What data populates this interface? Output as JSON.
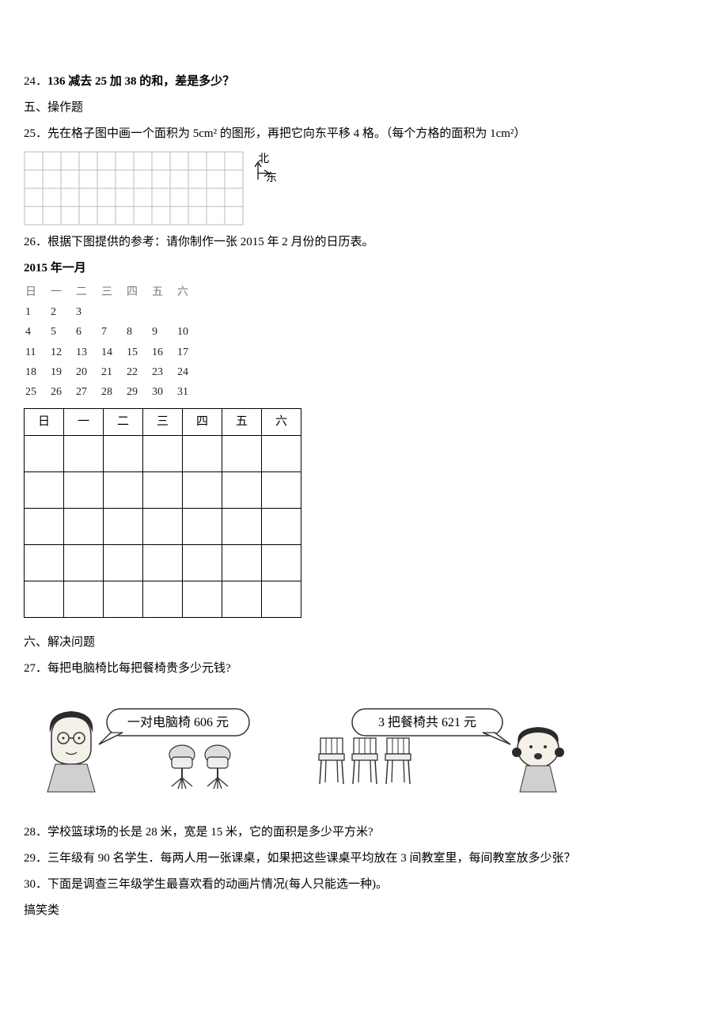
{
  "q24": {
    "number": "24．",
    "text": "136 减去 25 加 38 的和，差是多少？"
  },
  "section5": {
    "title": "五、操作题"
  },
  "q25": {
    "number": "25．",
    "text": "先在格子图中画一个面积为 5cm² 的图形，再把它向东平移 4 格。（每个方格的面积为 1cm²）",
    "grid": {
      "cols": 12,
      "rows": 4,
      "cell_size": 23,
      "stroke": "#bbbbbb",
      "stroke_width": 1
    },
    "compass": {
      "north": "北",
      "east": "东"
    }
  },
  "q26": {
    "number": "26．",
    "text": "根据下图提供的参考：请你制作一张 2015 年 2 月份的日历表。",
    "ref_title": "2015 年一月",
    "weekdays": [
      "日",
      "一",
      "二",
      "三",
      "四",
      "五",
      "六"
    ],
    "ref_rows": [
      [
        "1",
        "2",
        "3",
        "",
        "",
        "",
        ""
      ],
      [
        "4",
        "5",
        "6",
        "7",
        "8",
        "9",
        "10"
      ],
      [
        "11",
        "12",
        "13",
        "14",
        "15",
        "16",
        "17"
      ],
      [
        "18",
        "19",
        "20",
        "21",
        "22",
        "23",
        "24"
      ],
      [
        "25",
        "26",
        "27",
        "28",
        "29",
        "30",
        "31"
      ]
    ],
    "empty_rows": 5
  },
  "section6": {
    "title": "六、解决问题"
  },
  "q27": {
    "number": "27．",
    "text": "每把电脑椅比每把餐椅贵多少元钱?",
    "bubble1": "一对电脑椅 606 元",
    "bubble2": "3 把餐椅共 621 元"
  },
  "q28": {
    "number": "28．",
    "text": "学校篮球场的长是 28 米，宽是 15 米，它的面积是多少平方米?"
  },
  "q29": {
    "number": "29．",
    "text": "三年级有 90 名学生．每两人用一张课桌，如果把这些课桌平均放在 3 间教室里，每间教室放多少张？"
  },
  "q30": {
    "number": "30．",
    "text": "下面是调查三年级学生最喜欢看的动画片情况(每人只能选一种)。",
    "category": "搞笑类"
  },
  "style": {
    "text_color": "#000000",
    "bg_color": "#ffffff"
  }
}
